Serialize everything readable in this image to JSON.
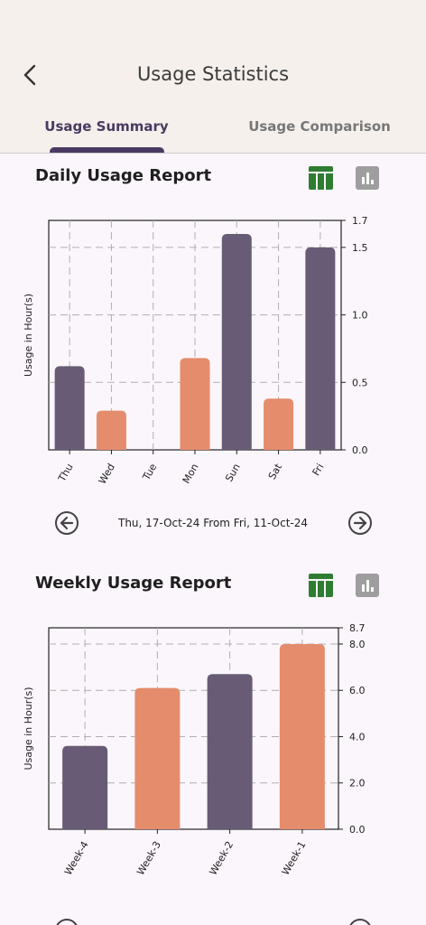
{
  "header": {
    "title": "Usage Statistics",
    "back_icon": "chevron-left-icon",
    "tabs": [
      {
        "label": "Usage Summary",
        "active": true
      },
      {
        "label": "Usage Comparison",
        "active": false
      }
    ]
  },
  "colors": {
    "primary": "#685b75",
    "accent": "#e58c6c",
    "table_icon": "#2e7d32",
    "chart_icon": "#9e9e9e",
    "tab_active": "#4a3a62"
  },
  "daily": {
    "title": "Daily Usage Report",
    "range_text": "Thu, 17-Oct-24 From Fri, 11-Oct-24"
  },
  "weekly": {
    "title": "Weekly Usage Report"
  },
  "chart_data": [
    {
      "type": "bar",
      "title": "Daily Usage Report",
      "ylabel": "Usage in Hour(s)",
      "categories": [
        "Thu",
        "Wed",
        "Tue",
        "Mon",
        "Sun",
        "Sat",
        "Fri"
      ],
      "values": [
        0.62,
        0.29,
        0,
        0.68,
        1.6,
        0.38,
        1.5
      ],
      "bar_colors": [
        "#685b75",
        "#e58c6c",
        "#685b75",
        "#e58c6c",
        "#685b75",
        "#e58c6c",
        "#685b75"
      ],
      "ylim": [
        0,
        1.7
      ],
      "yticks": [
        "0.0",
        "0.5",
        "1.0",
        "1.5",
        "1.7"
      ],
      "y_axis_side": "right",
      "grid": true
    },
    {
      "type": "bar",
      "title": "Weekly Usage Report",
      "ylabel": "Usage in Hour(s)",
      "categories": [
        "Week-4",
        "Week-3",
        "Week-2",
        "Week-1"
      ],
      "values": [
        3.6,
        6.1,
        6.7,
        8.0
      ],
      "bar_colors": [
        "#685b75",
        "#e58c6c",
        "#685b75",
        "#e58c6c"
      ],
      "ylim": [
        0,
        8.7
      ],
      "yticks": [
        "0.0",
        "2.0",
        "4.0",
        "6.0",
        "8.0",
        "8.7"
      ],
      "y_axis_side": "right",
      "grid": true
    }
  ]
}
